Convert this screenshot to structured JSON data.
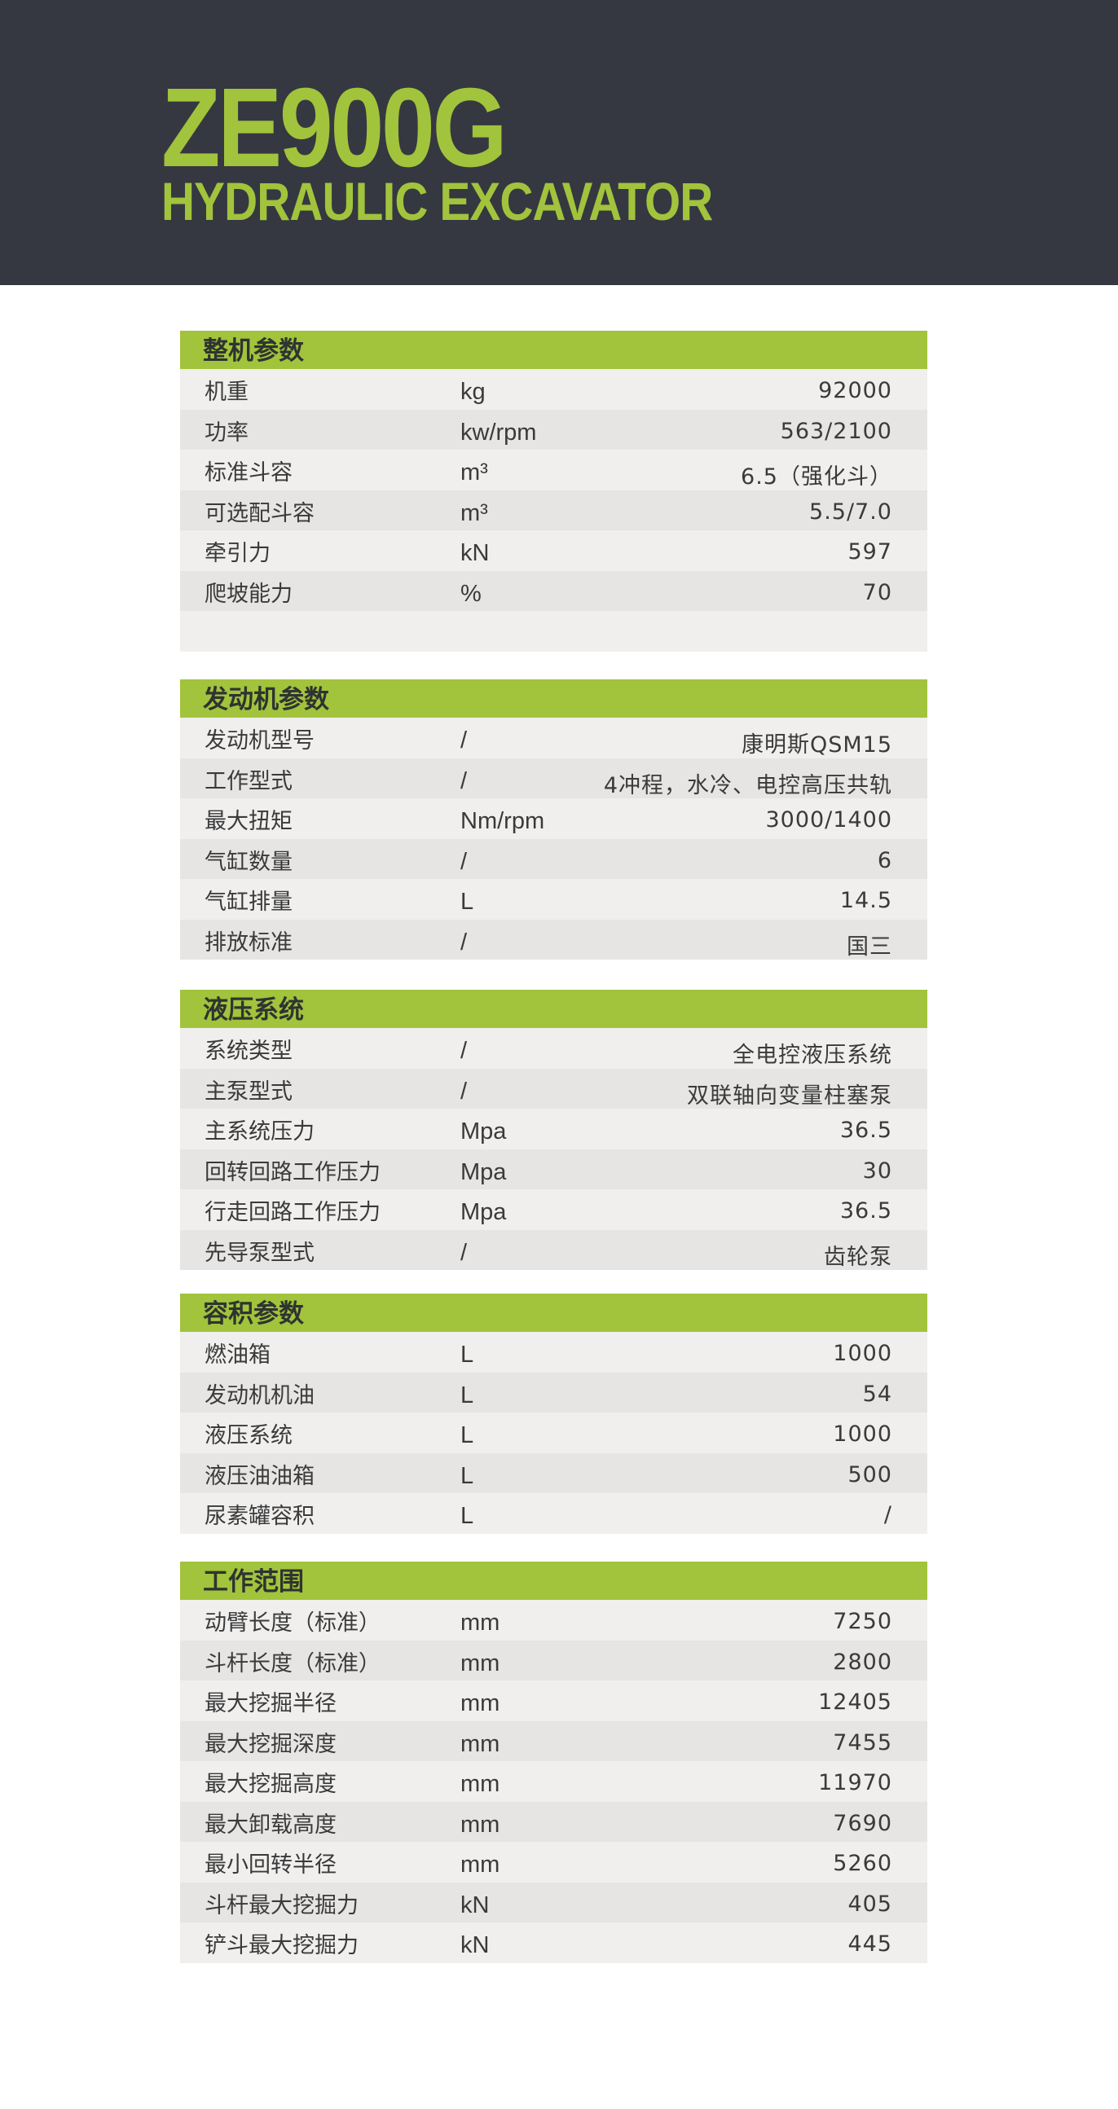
{
  "header": {
    "model": "ZE900G",
    "subtitle": "HYDRAULIC EXCAVATOR",
    "colors": {
      "banner": "#353840",
      "accent": "#a2c33c"
    }
  },
  "sections": [
    {
      "title": "整机参数",
      "rows": [
        {
          "label": "机重",
          "unit": "kg",
          "value": "92000"
        },
        {
          "label": "功率",
          "unit": "kw/rpm",
          "value": "563/2100"
        },
        {
          "label": "标准斗容",
          "unit": "m³",
          "value": "6.5（强化斗）"
        },
        {
          "label": "可选配斗容",
          "unit": "m³",
          "value": "5.5/7.0"
        },
        {
          "label": "牵引力",
          "unit": "kN",
          "value": "597"
        },
        {
          "label": "爬坡能力",
          "unit": "%",
          "value": "70"
        },
        {
          "label": "",
          "unit": "",
          "value": ""
        }
      ]
    },
    {
      "title": "发动机参数",
      "rows": [
        {
          "label": "发动机型号",
          "unit": "/",
          "value": "康明斯QSM15"
        },
        {
          "label": "工作型式",
          "unit": "/",
          "value": "4冲程，水冷、电控高压共轨"
        },
        {
          "label": "最大扭矩",
          "unit": "Nm/rpm",
          "value": "3000/1400"
        },
        {
          "label": "气缸数量",
          "unit": "/",
          "value": "6"
        },
        {
          "label": "气缸排量",
          "unit": "L",
          "value": "14.5"
        },
        {
          "label": "排放标准",
          "unit": "/",
          "value": "国三"
        }
      ]
    },
    {
      "title": "液压系统",
      "rows": [
        {
          "label": "系统类型",
          "unit": "/",
          "value": "全电控液压系统"
        },
        {
          "label": "主泵型式",
          "unit": "/",
          "value": "双联轴向变量柱塞泵"
        },
        {
          "label": "主系统压力",
          "unit": "Mpa",
          "value": "36.5"
        },
        {
          "label": "回转回路工作压力",
          "unit": "Mpa",
          "value": "30"
        },
        {
          "label": "行走回路工作压力",
          "unit": "Mpa",
          "value": "36.5"
        },
        {
          "label": "先导泵型式",
          "unit": "/",
          "value": "齿轮泵"
        }
      ]
    },
    {
      "title": "容积参数",
      "rows": [
        {
          "label": "燃油箱",
          "unit": "L",
          "value": "1000"
        },
        {
          "label": "发动机机油",
          "unit": "L",
          "value": "54"
        },
        {
          "label": "液压系统",
          "unit": "L",
          "value": "1000"
        },
        {
          "label": "液压油油箱",
          "unit": "L",
          "value": "500"
        },
        {
          "label": "尿素罐容积",
          "unit": "L",
          "value": "/"
        }
      ]
    },
    {
      "title": "工作范围",
      "rows": [
        {
          "label": "动臂长度（标准）",
          "unit": "mm",
          "value": "7250"
        },
        {
          "label": "斗杆长度（标准）",
          "unit": "mm",
          "value": "2800"
        },
        {
          "label": "最大挖掘半径",
          "unit": "mm",
          "value": "12405"
        },
        {
          "label": "最大挖掘深度",
          "unit": "mm",
          "value": "7455"
        },
        {
          "label": "最大挖掘高度",
          "unit": "mm",
          "value": "11970"
        },
        {
          "label": "最大卸载高度",
          "unit": "mm",
          "value": "7690"
        },
        {
          "label": "最小回转半径",
          "unit": "mm",
          "value": "5260"
        },
        {
          "label": "斗杆最大挖掘力",
          "unit": "kN",
          "value": "405"
        },
        {
          "label": "铲斗最大挖掘力",
          "unit": "kN",
          "value": "445"
        }
      ]
    }
  ]
}
